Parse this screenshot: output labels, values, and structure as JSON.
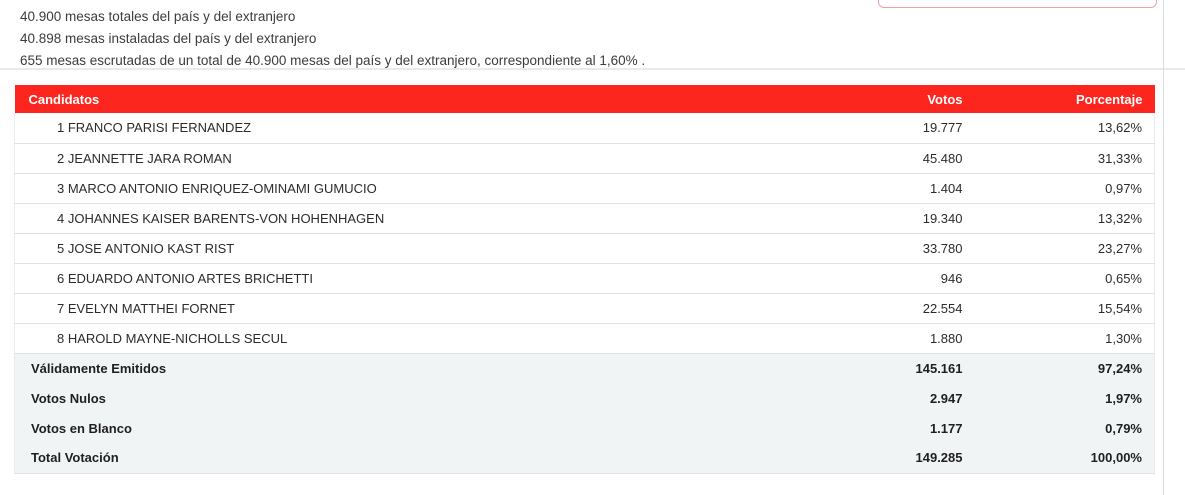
{
  "info": {
    "lines": [
      "40.900 mesas totales del país y del extranjero",
      "40.898 mesas instaladas del país y del extranjero",
      "655 mesas escrutadas de un total de 40.900 mesas del país y del extranjero, correspondiente al 1,60% ."
    ]
  },
  "table": {
    "headers": {
      "candidatos": "Candidatos",
      "votos": "Votos",
      "porcentaje": "Porcentaje"
    },
    "candidates": [
      {
        "name": "1 FRANCO PARISI FERNANDEZ",
        "votos": "19.777",
        "porcentaje": "13,62%"
      },
      {
        "name": "2 JEANNETTE JARA ROMAN",
        "votos": "45.480",
        "porcentaje": "31,33%"
      },
      {
        "name": "3 MARCO ANTONIO ENRIQUEZ-OMINAMI GUMUCIO",
        "votos": "1.404",
        "porcentaje": "0,97%"
      },
      {
        "name": "4 JOHANNES KAISER BARENTS-VON HOHENHAGEN",
        "votos": "19.340",
        "porcentaje": "13,32%"
      },
      {
        "name": "5 JOSE ANTONIO KAST RIST",
        "votos": "33.780",
        "porcentaje": "23,27%"
      },
      {
        "name": "6 EDUARDO ANTONIO ARTES BRICHETTI",
        "votos": "946",
        "porcentaje": "0,65%"
      },
      {
        "name": "7 EVELYN MATTHEI FORNET",
        "votos": "22.554",
        "porcentaje": "15,54%"
      },
      {
        "name": "8 HAROLD MAYNE-NICHOLLS SECUL",
        "votos": "1.880",
        "porcentaje": "1,30%"
      }
    ],
    "summary": [
      {
        "label": "Válidamente Emitidos",
        "votos": "145.161",
        "porcentaje": "97,24%"
      },
      {
        "label": "Votos Nulos",
        "votos": "2.947",
        "porcentaje": "1,97%"
      },
      {
        "label": "Votos en Blanco",
        "votos": "1.177",
        "porcentaje": "0,79%"
      },
      {
        "label": "Total Votación",
        "votos": "149.285",
        "porcentaje": "100,00%"
      }
    ]
  },
  "colors": {
    "header_red": "#fc261e",
    "header_text": "#ffffff",
    "summary_bg": "#f1f4f5",
    "row_border": "#e2e2e2",
    "button_border": "#f0a3a5"
  }
}
